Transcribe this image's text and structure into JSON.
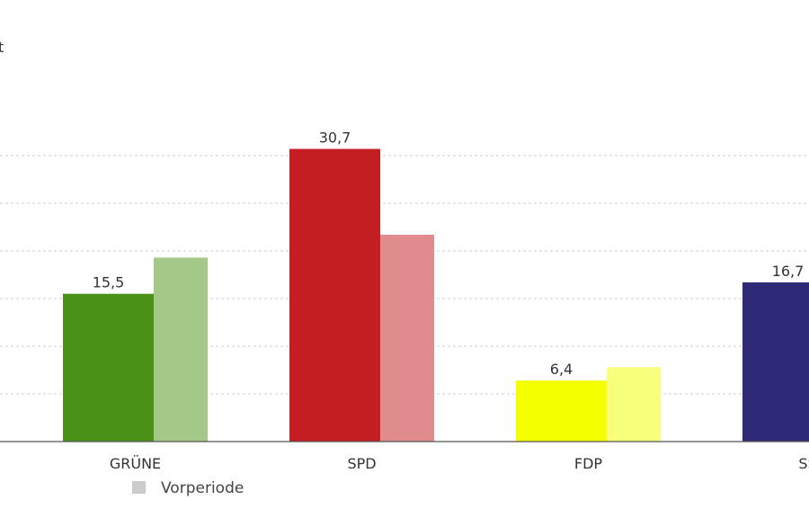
{
  "chart_data": {
    "type": "bar",
    "categories": [
      "GRÜNE",
      "SPD",
      "FDP",
      "SSW"
    ],
    "series": [
      {
        "values": [
          15.5,
          30.7,
          6.4,
          16.7
        ]
      },
      {
        "name": "Vorperiode",
        "values": [
          19.3,
          21.7,
          7.8,
          null
        ]
      }
    ],
    "data_labels": [
      "15,5",
      "30,7",
      "6,4",
      "16,7"
    ],
    "ylim": [
      0,
      32
    ],
    "grid": true,
    "legend": {
      "position": "bottom-left",
      "label": "Vorperiode"
    },
    "colors": {
      "current": [
        "#4a9118",
        "#c41d22",
        "#f4ff00",
        "#2f2a78"
      ],
      "previous": [
        "#a4c887",
        "#e08c8c",
        "#f8ff7a",
        "#9a96c4"
      ],
      "legend_swatch": "#cccccc",
      "grid": "#cccccc",
      "axis": "#555555"
    },
    "top_left_fragment": "t"
  }
}
